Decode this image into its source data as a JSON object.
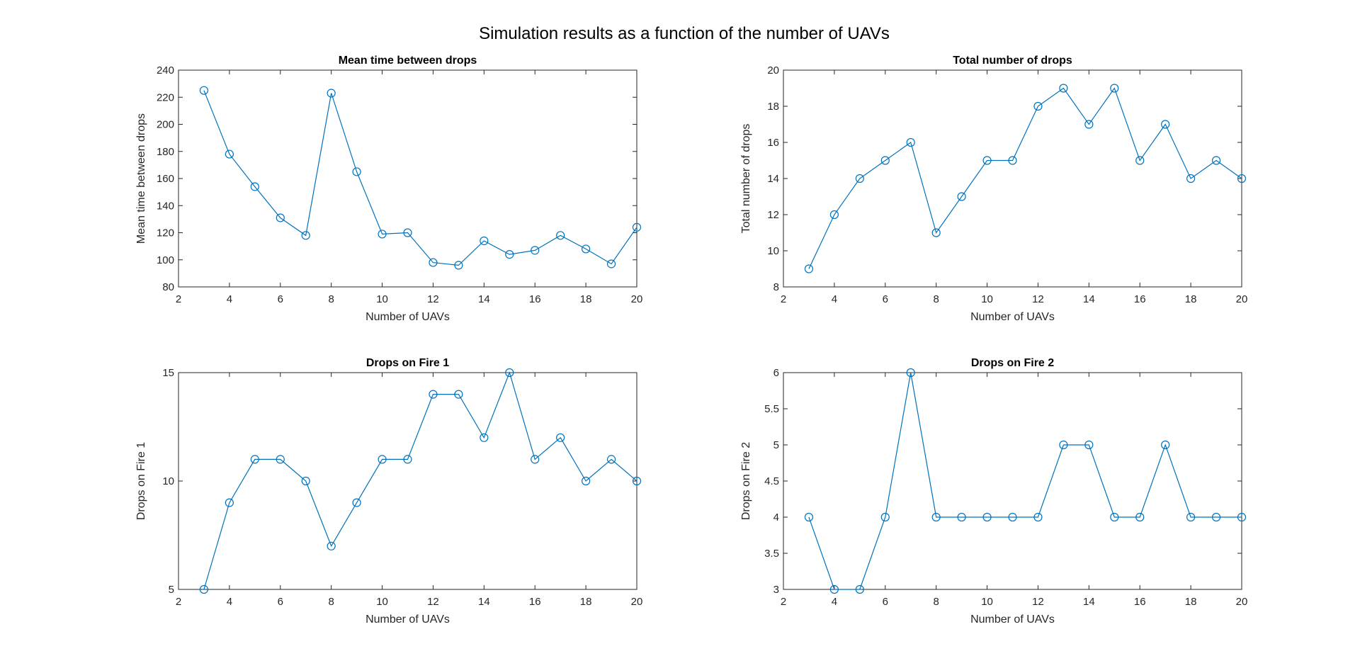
{
  "figure_title": "Simulation results as a function of the number of UAVs",
  "series_color": "#0072BD",
  "chart_data": [
    {
      "type": "line",
      "title": "Mean time between drops",
      "xlabel": "Number of UAVs",
      "ylabel": "Mean time between drops",
      "xlim": [
        2,
        20
      ],
      "ylim": [
        80,
        240
      ],
      "xticks": [
        2,
        4,
        6,
        8,
        10,
        12,
        14,
        16,
        18,
        20
      ],
      "yticks": [
        80,
        100,
        120,
        140,
        160,
        180,
        200,
        220,
        240
      ],
      "marker": "circle",
      "x": [
        3,
        4,
        5,
        6,
        7,
        8,
        9,
        10,
        11,
        12,
        13,
        14,
        15,
        16,
        17,
        18,
        19,
        20
      ],
      "y": [
        225,
        178,
        154,
        131,
        118,
        223,
        165,
        119,
        120,
        98,
        96,
        114,
        104,
        107,
        118,
        108,
        97,
        124
      ]
    },
    {
      "type": "line",
      "title": "Total number of drops",
      "xlabel": "Number of UAVs",
      "ylabel": "Total number of drops",
      "xlim": [
        2,
        20
      ],
      "ylim": [
        8,
        20
      ],
      "xticks": [
        2,
        4,
        6,
        8,
        10,
        12,
        14,
        16,
        18,
        20
      ],
      "yticks": [
        8,
        10,
        12,
        14,
        16,
        18,
        20
      ],
      "marker": "circle",
      "x": [
        3,
        4,
        5,
        6,
        7,
        8,
        9,
        10,
        11,
        12,
        13,
        14,
        15,
        16,
        17,
        18,
        19,
        20
      ],
      "y": [
        9,
        12,
        14,
        15,
        16,
        11,
        13,
        15,
        15,
        18,
        19,
        17,
        19,
        15,
        17,
        14,
        15,
        14
      ]
    },
    {
      "type": "line",
      "title": "Drops on Fire 1",
      "xlabel": "Number of UAVs",
      "ylabel": "Drops on Fire 1",
      "xlim": [
        2,
        20
      ],
      "ylim": [
        5,
        15
      ],
      "xticks": [
        2,
        4,
        6,
        8,
        10,
        12,
        14,
        16,
        18,
        20
      ],
      "yticks": [
        5,
        10,
        15
      ],
      "marker": "circle",
      "x": [
        3,
        4,
        5,
        6,
        7,
        8,
        9,
        10,
        11,
        12,
        13,
        14,
        15,
        16,
        17,
        18,
        19,
        20
      ],
      "y": [
        5,
        9,
        11,
        11,
        10,
        7,
        9,
        11,
        11,
        14,
        14,
        12,
        15,
        11,
        12,
        10,
        11,
        10
      ]
    },
    {
      "type": "line",
      "title": "Drops on Fire 2",
      "xlabel": "Number of UAVs",
      "ylabel": "Drops on Fire 2",
      "xlim": [
        2,
        20
      ],
      "ylim": [
        3,
        6
      ],
      "xticks": [
        2,
        4,
        6,
        8,
        10,
        12,
        14,
        16,
        18,
        20
      ],
      "yticks": [
        3,
        3.5,
        4,
        4.5,
        5,
        5.5,
        6
      ],
      "marker": "circle",
      "x": [
        3,
        4,
        5,
        6,
        7,
        8,
        9,
        10,
        11,
        12,
        13,
        14,
        15,
        16,
        17,
        18,
        19,
        20
      ],
      "y": [
        4,
        3,
        3,
        4,
        6,
        4,
        4,
        4,
        4,
        4,
        5,
        5,
        4,
        4,
        5,
        4,
        4,
        4
      ]
    }
  ]
}
